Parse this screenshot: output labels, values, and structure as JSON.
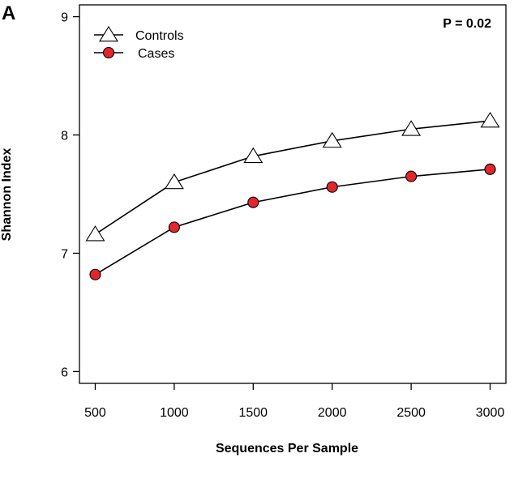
{
  "panel_label": "A",
  "chart_data": {
    "type": "line",
    "x": [
      500,
      1000,
      1500,
      2000,
      2500,
      3000
    ],
    "x_tick_labels": [
      "500",
      "1000",
      "1500",
      "2000",
      "2500",
      "3000"
    ],
    "y_ticks": [
      6,
      7,
      8,
      9
    ],
    "y_tick_labels": [
      "6",
      "7",
      "8",
      "9"
    ],
    "xlim": [
      400,
      3100
    ],
    "ylim": [
      5.9,
      9.1
    ],
    "xlabel": "Sequences Per Sample",
    "ylabel": "Shannon Index",
    "annotation": "P = 0.02",
    "legend_position": "top-left",
    "grid": false,
    "series": [
      {
        "name": "Controls",
        "marker": "triangle",
        "color": "#ffffff",
        "values": [
          7.16,
          7.6,
          7.82,
          7.95,
          8.05,
          8.12
        ]
      },
      {
        "name": "Cases",
        "marker": "circle",
        "color": "#e3262b",
        "values": [
          6.82,
          7.22,
          7.43,
          7.56,
          7.65,
          7.71
        ]
      }
    ]
  }
}
